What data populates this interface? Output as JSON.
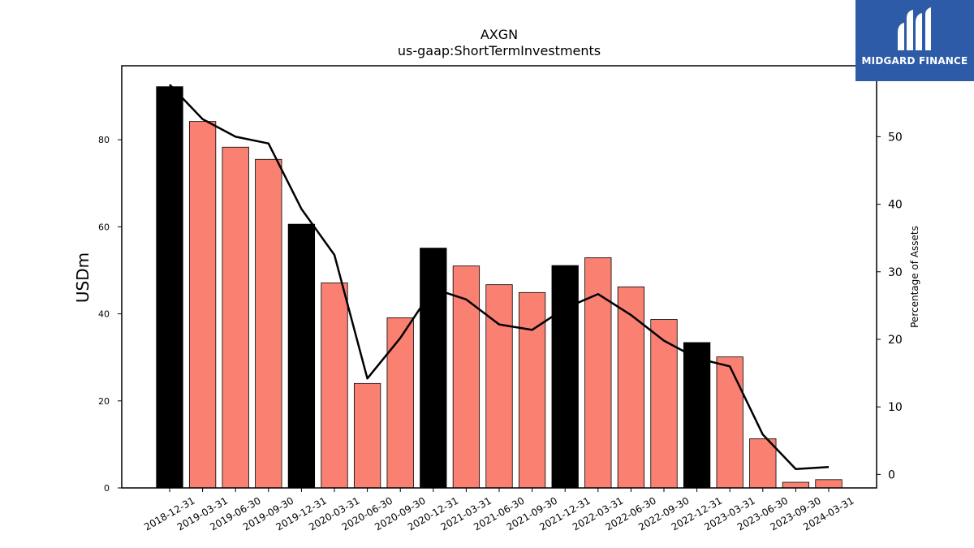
{
  "brand": {
    "name": "MIDGARD FINANCE",
    "color": "#2d5ba8"
  },
  "chart_data": {
    "type": "bar",
    "title": "AXGN",
    "subtitle": "us-gaap:ShortTermInvestments",
    "ylabel": "USDm",
    "y2label": "Percentage of Assets",
    "ylim": [
      0,
      97
    ],
    "y2lim": [
      -2,
      60.5
    ],
    "yticks": [
      0,
      20,
      40,
      60,
      80
    ],
    "y2ticks": [
      0,
      10,
      20,
      30,
      40,
      50
    ],
    "categories": [
      "2018-12-31",
      "2019-03-31",
      "2019-06-30",
      "2019-09-30",
      "2019-12-31",
      "2020-03-31",
      "2020-06-30",
      "2020-09-30",
      "2020-12-31",
      "2021-03-31",
      "2021-06-30",
      "2021-09-30",
      "2021-12-31",
      "2022-03-31",
      "2022-06-30",
      "2022-09-30",
      "2022-12-31",
      "2023-03-31",
      "2023-06-30",
      "2023-09-30",
      "2024-03-31"
    ],
    "series": [
      {
        "type": "bar",
        "axis": "left",
        "values": [
          92.2,
          84.2,
          78.3,
          75.5,
          60.6,
          47.1,
          24.0,
          39.1,
          55.1,
          51.0,
          46.7,
          44.9,
          51.1,
          52.9,
          46.2,
          38.7,
          33.4,
          30.1,
          11.3,
          1.3,
          1.9
        ],
        "colors": [
          "#000000",
          "#fa8072",
          "#fa8072",
          "#fa8072",
          "#000000",
          "#fa8072",
          "#fa8072",
          "#fa8072",
          "#000000",
          "#fa8072",
          "#fa8072",
          "#fa8072",
          "#000000",
          "#fa8072",
          "#fa8072",
          "#fa8072",
          "#000000",
          "#fa8072",
          "#fa8072",
          "#fa8072",
          "#fa8072"
        ]
      },
      {
        "type": "line",
        "axis": "right",
        "color": "#000000",
        "values": [
          57.7,
          52.6,
          50.0,
          49.0,
          39.3,
          32.5,
          14.2,
          20.2,
          27.5,
          25.9,
          22.2,
          21.4,
          24.6,
          26.7,
          23.6,
          19.8,
          17.2,
          16.0,
          5.9,
          0.8,
          1.1
        ]
      }
    ],
    "grid": false,
    "legend": "none"
  }
}
